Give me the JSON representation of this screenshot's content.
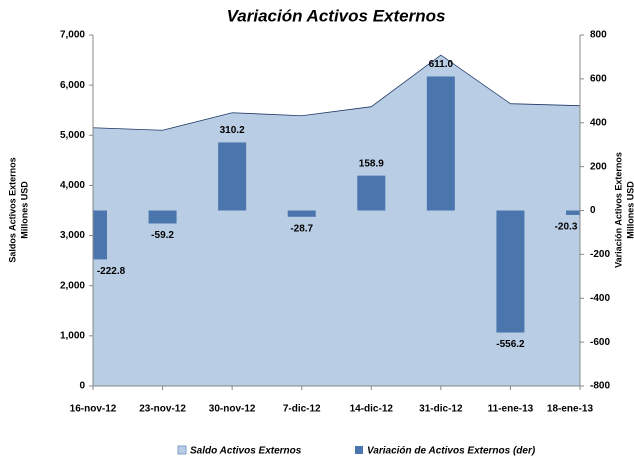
{
  "chart_data": {
    "type": "combo",
    "title": "Variación Activos Externos",
    "ylabel": [
      "Saldos Activos Externos",
      "Millones USD"
    ],
    "y2label": [
      "Variación Activos Externos",
      "Millones USD"
    ],
    "categories": [
      "16-nov-12",
      "23-nov-12",
      "30-nov-12",
      "7-dic-12",
      "14-dic-12",
      "31-dic-12",
      "11-ene-13",
      "18-ene-13"
    ],
    "series": [
      {
        "name": "Saldo Activos Externos",
        "type": "area",
        "color": "#b9cde5",
        "values": [
          5150,
          5100,
          5450,
          5390,
          5570,
          6600,
          5630,
          5590
        ]
      },
      {
        "name": "Variación de Activos Externos (der)",
        "type": "bar",
        "axis": "y2",
        "color": "#4a76ad",
        "values": [
          -222.8,
          -59.2,
          310.2,
          -28.7,
          158.9,
          611.0,
          -556.2,
          -20.3
        ],
        "value_labels": [
          "-222.8",
          "-59.2",
          "310.2",
          "-28.7",
          "158.9",
          "611.0",
          "-556.2",
          "-20.3"
        ]
      }
    ],
    "ylim": [
      0,
      7000
    ],
    "yticks": [
      {
        "value": 0,
        "label": "0"
      },
      {
        "value": 1000,
        "label": "1,000"
      },
      {
        "value": 2000,
        "label": "2,000"
      },
      {
        "value": 3000,
        "label": "3,000"
      },
      {
        "value": 4000,
        "label": "4,000"
      },
      {
        "value": 5000,
        "label": "5,000"
      },
      {
        "value": 6000,
        "label": "6,000"
      },
      {
        "value": 7000,
        "label": "7,000"
      }
    ],
    "y2lim": [
      -800,
      800
    ],
    "y2ticks": [
      -800,
      -600,
      -400,
      -200,
      0,
      200,
      400,
      600,
      800
    ],
    "legend": "bottom"
  }
}
